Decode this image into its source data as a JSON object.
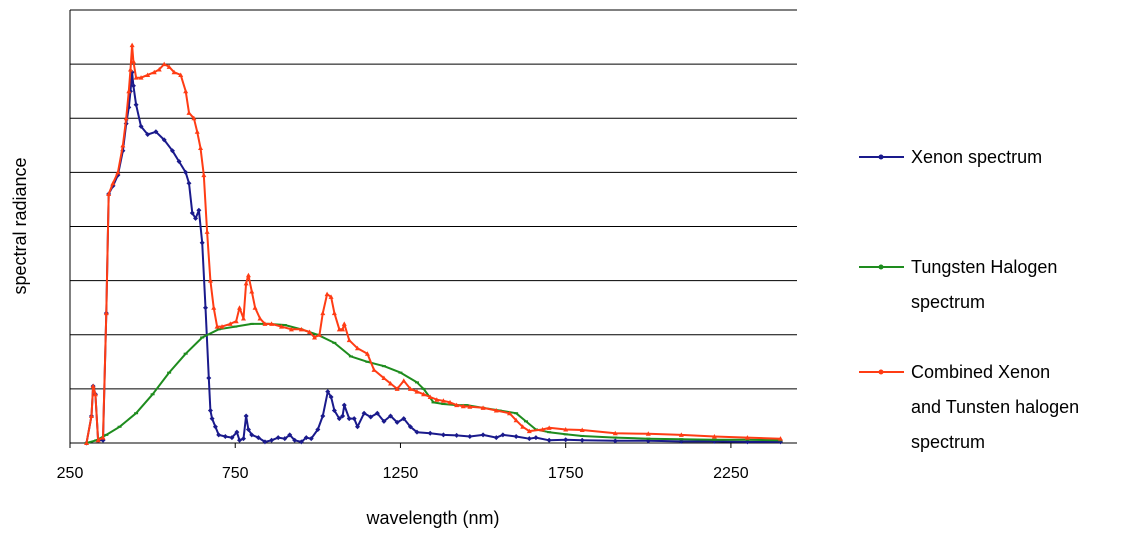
{
  "chart_data": {
    "type": "line",
    "xlabel": "wavelength (nm)",
    "ylabel": "spectral radiance",
    "xlim": [
      250,
      2450
    ],
    "ylim": [
      0,
      8
    ],
    "x_ticks": [
      "250",
      "750",
      "1250",
      "1750",
      "2250"
    ],
    "x_tick_values": [
      250,
      750,
      1250,
      1750,
      2250
    ],
    "y_gridlines": [
      1,
      2,
      3,
      4,
      5,
      6,
      7,
      8
    ],
    "grid": "horizontal",
    "legend_position": "right",
    "series": [
      {
        "name": "Xenon spectrum",
        "color": "#1a1a8c",
        "marker": "diamond",
        "points": [
          [
            300,
            0.0
          ],
          [
            315,
            0.5
          ],
          [
            320,
            1.05
          ],
          [
            327,
            0.9
          ],
          [
            335,
            0.05
          ],
          [
            350,
            0.05
          ],
          [
            360,
            2.4
          ],
          [
            367,
            4.6
          ],
          [
            380,
            4.75
          ],
          [
            395,
            4.95
          ],
          [
            410,
            5.4
          ],
          [
            420,
            5.9
          ],
          [
            428,
            6.2
          ],
          [
            433,
            6.5
          ],
          [
            438,
            6.85
          ],
          [
            442,
            6.6
          ],
          [
            450,
            6.25
          ],
          [
            465,
            5.85
          ],
          [
            485,
            5.7
          ],
          [
            510,
            5.75
          ],
          [
            535,
            5.6
          ],
          [
            560,
            5.4
          ],
          [
            580,
            5.2
          ],
          [
            600,
            5.0
          ],
          [
            610,
            4.8
          ],
          [
            620,
            4.25
          ],
          [
            630,
            4.15
          ],
          [
            640,
            4.3
          ],
          [
            650,
            3.7
          ],
          [
            660,
            2.5
          ],
          [
            670,
            1.2
          ],
          [
            675,
            0.6
          ],
          [
            680,
            0.45
          ],
          [
            690,
            0.3
          ],
          [
            700,
            0.15
          ],
          [
            720,
            0.12
          ],
          [
            740,
            0.1
          ],
          [
            755,
            0.2
          ],
          [
            763,
            0.05
          ],
          [
            775,
            0.08
          ],
          [
            783,
            0.5
          ],
          [
            790,
            0.25
          ],
          [
            800,
            0.15
          ],
          [
            820,
            0.1
          ],
          [
            840,
            0.02
          ],
          [
            860,
            0.05
          ],
          [
            880,
            0.1
          ],
          [
            900,
            0.08
          ],
          [
            915,
            0.15
          ],
          [
            930,
            0.05
          ],
          [
            950,
            0.02
          ],
          [
            965,
            0.1
          ],
          [
            980,
            0.08
          ],
          [
            1000,
            0.25
          ],
          [
            1015,
            0.5
          ],
          [
            1030,
            0.95
          ],
          [
            1040,
            0.85
          ],
          [
            1050,
            0.6
          ],
          [
            1065,
            0.45
          ],
          [
            1075,
            0.5
          ],
          [
            1080,
            0.7
          ],
          [
            1095,
            0.45
          ],
          [
            1110,
            0.45
          ],
          [
            1120,
            0.3
          ],
          [
            1140,
            0.55
          ],
          [
            1160,
            0.48
          ],
          [
            1180,
            0.55
          ],
          [
            1200,
            0.4
          ],
          [
            1220,
            0.5
          ],
          [
            1240,
            0.38
          ],
          [
            1260,
            0.45
          ],
          [
            1280,
            0.3
          ],
          [
            1300,
            0.2
          ],
          [
            1340,
            0.18
          ],
          [
            1380,
            0.15
          ],
          [
            1420,
            0.14
          ],
          [
            1460,
            0.12
          ],
          [
            1500,
            0.15
          ],
          [
            1540,
            0.1
          ],
          [
            1560,
            0.15
          ],
          [
            1600,
            0.12
          ],
          [
            1640,
            0.08
          ],
          [
            1660,
            0.1
          ],
          [
            1700,
            0.05
          ],
          [
            1750,
            0.06
          ],
          [
            1800,
            0.05
          ],
          [
            1900,
            0.04
          ],
          [
            2000,
            0.04
          ],
          [
            2100,
            0.03
          ],
          [
            2200,
            0.03
          ],
          [
            2300,
            0.02
          ],
          [
            2400,
            0.02
          ]
        ]
      },
      {
        "name": "Tungsten Halogen spectrum",
        "color": "#1e8c1e",
        "marker": "dash",
        "points": [
          [
            300,
            0.0
          ],
          [
            330,
            0.05
          ],
          [
            360,
            0.15
          ],
          [
            400,
            0.3
          ],
          [
            450,
            0.55
          ],
          [
            500,
            0.9
          ],
          [
            550,
            1.3
          ],
          [
            600,
            1.65
          ],
          [
            650,
            1.95
          ],
          [
            700,
            2.1
          ],
          [
            750,
            2.15
          ],
          [
            800,
            2.2
          ],
          [
            850,
            2.2
          ],
          [
            900,
            2.18
          ],
          [
            950,
            2.1
          ],
          [
            1000,
            2.0
          ],
          [
            1050,
            1.85
          ],
          [
            1100,
            1.6
          ],
          [
            1150,
            1.5
          ],
          [
            1200,
            1.42
          ],
          [
            1250,
            1.3
          ],
          [
            1300,
            1.12
          ],
          [
            1320,
            1.0
          ],
          [
            1350,
            0.75
          ],
          [
            1380,
            0.72
          ],
          [
            1420,
            0.7
          ],
          [
            1450,
            0.7
          ],
          [
            1500,
            0.65
          ],
          [
            1550,
            0.6
          ],
          [
            1600,
            0.55
          ],
          [
            1630,
            0.4
          ],
          [
            1660,
            0.25
          ],
          [
            1700,
            0.2
          ],
          [
            1750,
            0.16
          ],
          [
            1800,
            0.13
          ],
          [
            1900,
            0.1
          ],
          [
            2000,
            0.08
          ],
          [
            2100,
            0.07
          ],
          [
            2200,
            0.06
          ],
          [
            2300,
            0.06
          ],
          [
            2400,
            0.05
          ]
        ]
      },
      {
        "name": "Combined Xenon and Tunsten halogen spectrum",
        "color": "#ff3c14",
        "marker": "triangle",
        "points": [
          [
            300,
            0.0
          ],
          [
            315,
            0.5
          ],
          [
            320,
            1.05
          ],
          [
            327,
            0.9
          ],
          [
            335,
            0.05
          ],
          [
            350,
            0.1
          ],
          [
            360,
            2.4
          ],
          [
            367,
            4.6
          ],
          [
            380,
            4.8
          ],
          [
            395,
            5.0
          ],
          [
            410,
            5.5
          ],
          [
            420,
            6.0
          ],
          [
            428,
            6.5
          ],
          [
            433,
            6.9
          ],
          [
            438,
            7.35
          ],
          [
            442,
            7.05
          ],
          [
            450,
            6.75
          ],
          [
            465,
            6.75
          ],
          [
            485,
            6.8
          ],
          [
            505,
            6.85
          ],
          [
            520,
            6.9
          ],
          [
            535,
            7.0
          ],
          [
            550,
            6.95
          ],
          [
            565,
            6.85
          ],
          [
            585,
            6.8
          ],
          [
            600,
            6.5
          ],
          [
            610,
            6.1
          ],
          [
            625,
            6.0
          ],
          [
            635,
            5.75
          ],
          [
            645,
            5.45
          ],
          [
            655,
            4.95
          ],
          [
            665,
            3.9
          ],
          [
            675,
            3.0
          ],
          [
            685,
            2.5
          ],
          [
            695,
            2.15
          ],
          [
            710,
            2.15
          ],
          [
            735,
            2.2
          ],
          [
            753,
            2.25
          ],
          [
            763,
            2.5
          ],
          [
            775,
            2.3
          ],
          [
            783,
            2.95
          ],
          [
            790,
            3.1
          ],
          [
            800,
            2.8
          ],
          [
            810,
            2.5
          ],
          [
            825,
            2.3
          ],
          [
            840,
            2.2
          ],
          [
            860,
            2.2
          ],
          [
            890,
            2.15
          ],
          [
            920,
            2.1
          ],
          [
            950,
            2.1
          ],
          [
            975,
            2.05
          ],
          [
            990,
            1.95
          ],
          [
            1005,
            2.0
          ],
          [
            1015,
            2.4
          ],
          [
            1028,
            2.75
          ],
          [
            1040,
            2.7
          ],
          [
            1050,
            2.4
          ],
          [
            1065,
            2.1
          ],
          [
            1075,
            2.1
          ],
          [
            1080,
            2.2
          ],
          [
            1095,
            1.9
          ],
          [
            1120,
            1.75
          ],
          [
            1150,
            1.65
          ],
          [
            1170,
            1.35
          ],
          [
            1200,
            1.2
          ],
          [
            1220,
            1.1
          ],
          [
            1240,
            1.0
          ],
          [
            1260,
            1.15
          ],
          [
            1280,
            1.0
          ],
          [
            1300,
            0.95
          ],
          [
            1320,
            0.9
          ],
          [
            1340,
            0.85
          ],
          [
            1360,
            0.8
          ],
          [
            1380,
            0.78
          ],
          [
            1400,
            0.75
          ],
          [
            1420,
            0.7
          ],
          [
            1440,
            0.68
          ],
          [
            1460,
            0.67
          ],
          [
            1500,
            0.65
          ],
          [
            1540,
            0.6
          ],
          [
            1580,
            0.55
          ],
          [
            1600,
            0.42
          ],
          [
            1620,
            0.3
          ],
          [
            1640,
            0.22
          ],
          [
            1680,
            0.25
          ],
          [
            1700,
            0.28
          ],
          [
            1750,
            0.25
          ],
          [
            1800,
            0.24
          ],
          [
            1900,
            0.18
          ],
          [
            2000,
            0.17
          ],
          [
            2100,
            0.15
          ],
          [
            2200,
            0.12
          ],
          [
            2300,
            0.1
          ],
          [
            2400,
            0.08
          ]
        ]
      }
    ]
  },
  "legend": {
    "items": [
      {
        "lines": [
          "Xenon spectrum"
        ],
        "color": "#1a1a8c"
      },
      {
        "lines": [
          "Tungsten Halogen",
          "spectrum"
        ],
        "color": "#1e8c1e"
      },
      {
        "lines": [
          "Combined Xenon",
          "and Tunsten halogen",
          "spectrum"
        ],
        "color": "#ff3c14"
      }
    ]
  }
}
